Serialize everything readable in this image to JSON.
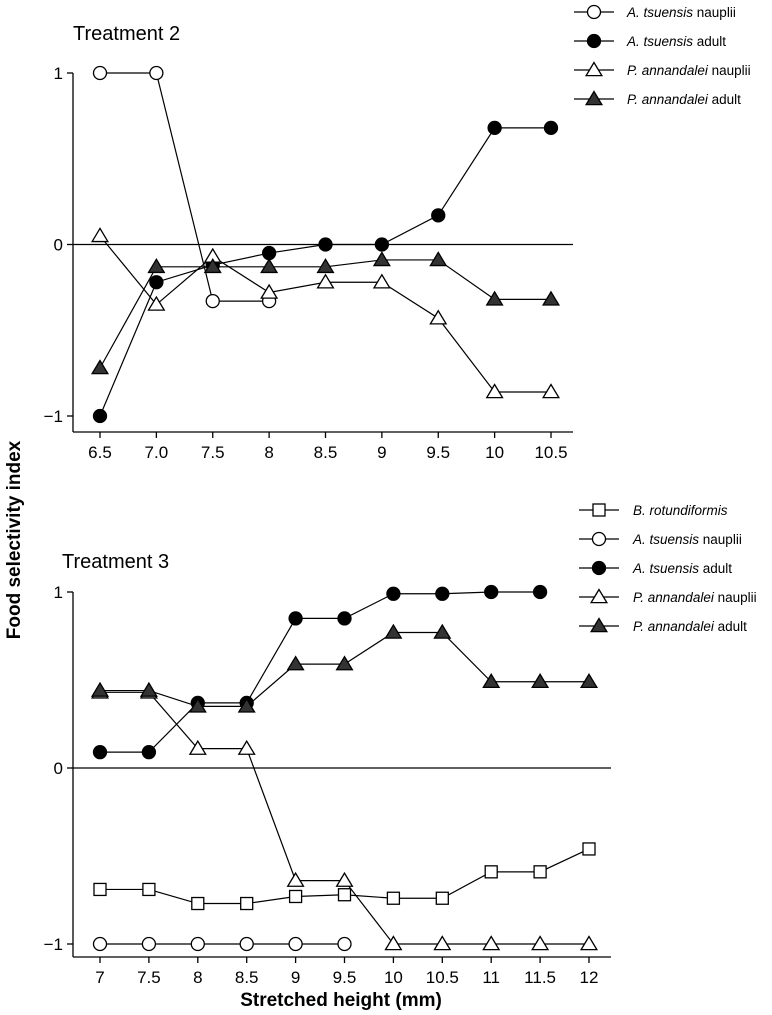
{
  "chart_data": [
    {
      "type": "line",
      "title": "Treatment 2",
      "x": [
        "6.5",
        "7.0",
        "7.5",
        "8",
        "8.5",
        "9",
        "9.5",
        "10",
        "10.5"
      ],
      "ylim": [
        -1,
        1
      ],
      "yticks": [
        "1",
        "0",
        "−1"
      ],
      "grid": false,
      "legend_position": "top-right",
      "series": [
        {
          "name_italic": "A. tsuensis",
          "name_rest": " nauplii",
          "marker": "open-circle",
          "values": [
            1.0,
            1.0,
            -0.33,
            -0.33,
            null,
            null,
            null,
            null,
            null
          ]
        },
        {
          "name_italic": "A. tsuensis",
          "name_rest": " adult",
          "marker": "filled-circle",
          "values": [
            -1.0,
            -0.22,
            -0.12,
            -0.05,
            0.0,
            0.0,
            0.17,
            0.68,
            0.68
          ]
        },
        {
          "name_italic": "P. annandalei",
          "name_rest": " nauplii",
          "marker": "open-triangle",
          "values": [
            0.05,
            -0.35,
            -0.07,
            -0.28,
            -0.22,
            -0.22,
            -0.43,
            -0.86,
            -0.86
          ]
        },
        {
          "name_italic": "P. annandalei",
          "name_rest": " adult",
          "marker": "filled-triangle",
          "values": [
            -0.72,
            -0.13,
            -0.13,
            -0.13,
            -0.13,
            -0.09,
            -0.09,
            -0.32,
            -0.32
          ]
        }
      ]
    },
    {
      "type": "line",
      "title": "Treatment 3",
      "x": [
        "7",
        "7.5",
        "8",
        "8.5",
        "9",
        "9.5",
        "10",
        "10.5",
        "11",
        "11.5",
        "12"
      ],
      "ylim": [
        -1,
        1
      ],
      "yticks": [
        "1",
        "0",
        "−1"
      ],
      "grid": false,
      "legend_position": "top-right",
      "series": [
        {
          "name_italic": "B. rotundiformis",
          "name_rest": "",
          "marker": "open-square",
          "values": [
            -0.69,
            -0.69,
            -0.77,
            -0.77,
            -0.73,
            -0.72,
            -0.74,
            -0.74,
            -0.59,
            -0.59,
            -0.46
          ]
        },
        {
          "name_italic": "A. tsuensis",
          "name_rest": " nauplii",
          "marker": "open-circle",
          "values": [
            -1.0,
            -1.0,
            -1.0,
            -1.0,
            -1.0,
            -1.0,
            null,
            null,
            null,
            null,
            null
          ]
        },
        {
          "name_italic": "A. tsuensis",
          "name_rest": " adult",
          "marker": "filled-circle",
          "values": [
            0.09,
            0.09,
            0.37,
            0.37,
            0.85,
            0.85,
            0.99,
            0.99,
            1.0,
            1.0,
            null
          ]
        },
        {
          "name_italic": "P. annandalei",
          "name_rest": " nauplii",
          "marker": "open-triangle",
          "values": [
            0.43,
            0.43,
            0.11,
            0.11,
            -0.64,
            -0.64,
            -1.0,
            -1.0,
            -1.0,
            -1.0,
            -1.0
          ]
        },
        {
          "name_italic": "P. annandalei",
          "name_rest": " adult",
          "marker": "filled-triangle",
          "values": [
            0.44,
            0.44,
            0.35,
            0.35,
            0.59,
            0.59,
            0.77,
            0.77,
            0.49,
            0.49,
            0.49
          ]
        }
      ]
    }
  ],
  "labels": {
    "ylabel": "Food selectivity index",
    "xlabel": "Stretched height (mm)"
  }
}
